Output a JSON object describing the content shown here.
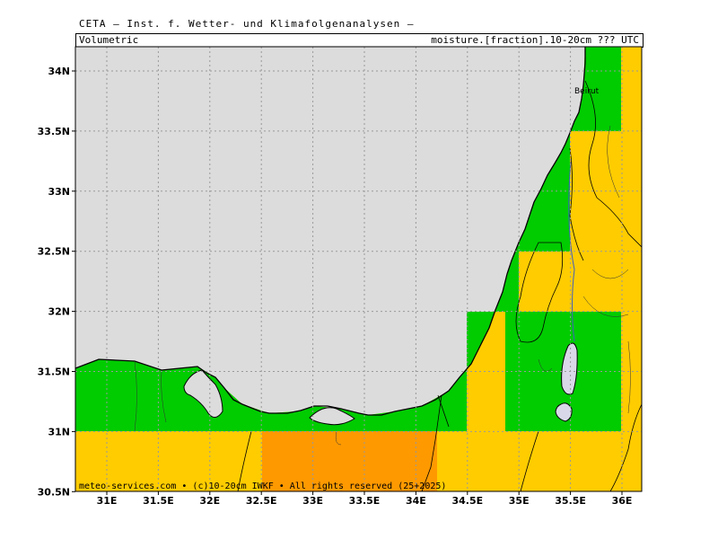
{
  "header": {
    "title": "CETA – Inst. f. Wetter- und Klimafolgenanalysen –",
    "subtitle_left": "Volumetric",
    "subtitle_right": "moisture.[fraction].10-20cm ??? UTC"
  },
  "map": {
    "lon_ticks": [
      "31E",
      "31.5E",
      "32E",
      "32.5E",
      "33E",
      "33.5E",
      "34E",
      "34.5E",
      "35E",
      "35.5E",
      "36E"
    ],
    "lat_ticks": [
      "34N",
      "33.5N",
      "33N",
      "32.5N",
      "32N",
      "31.5N",
      "31N",
      "30.5N"
    ],
    "city_label": "Beirut",
    "credit": "meteo-services.com • (c)10-20cm IWKF • All rights reserved (25+2025)",
    "colors": {
      "sea": "#dcdcdc",
      "green": "#00cc00",
      "yellow": "#ffcc00",
      "orange": "#ff9900",
      "lake": "#d8d8e8"
    }
  }
}
